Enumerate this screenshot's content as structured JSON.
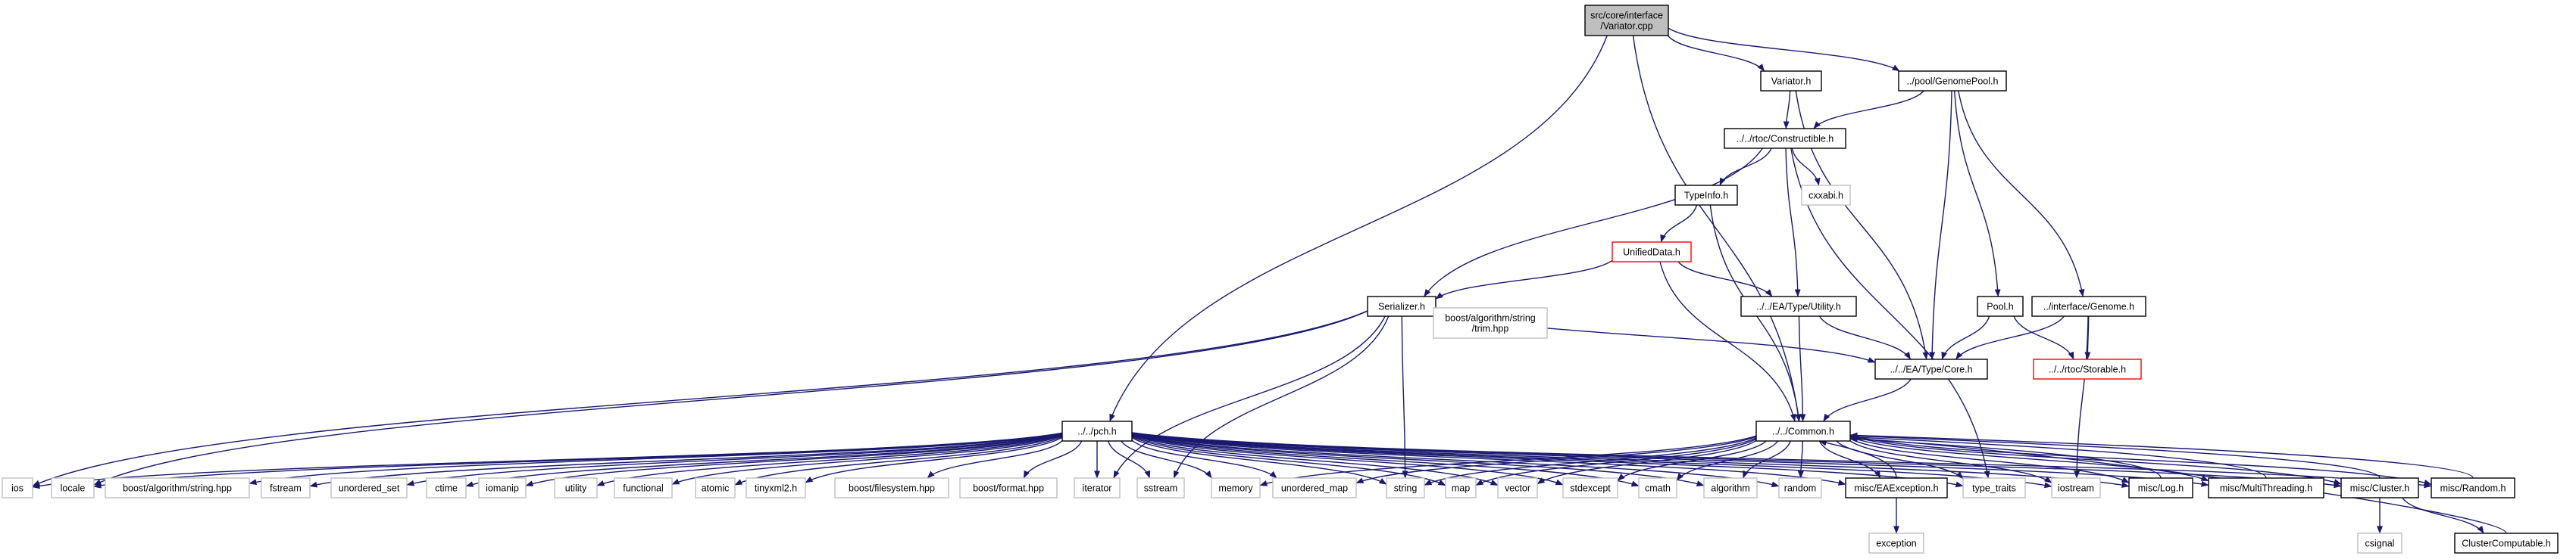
{
  "graph": {
    "nodes": [
      {
        "id": "variator_cpp",
        "lines": [
          "src/core/interface",
          "/Variator.cpp"
        ],
        "style": "root"
      },
      {
        "id": "variator_h",
        "lines": [
          "Variator.h"
        ],
        "style": "normal"
      },
      {
        "id": "genomepool_h",
        "lines": [
          "../pool/GenomePool.h"
        ],
        "style": "normal"
      },
      {
        "id": "constructible_h",
        "lines": [
          "../../rtoc/Constructible.h"
        ],
        "style": "normal"
      },
      {
        "id": "typeinfo_h",
        "lines": [
          "TypeInfo.h"
        ],
        "style": "normal"
      },
      {
        "id": "cxxabi_h",
        "lines": [
          "cxxabi.h"
        ],
        "style": "gray"
      },
      {
        "id": "unifieddata_h",
        "lines": [
          "UnifiedData.h"
        ],
        "style": "red"
      },
      {
        "id": "serializer_h",
        "lines": [
          "Serializer.h"
        ],
        "style": "normal"
      },
      {
        "id": "boost_trim",
        "lines": [
          "boost/algorithm/string",
          "/trim.hpp"
        ],
        "style": "gray"
      },
      {
        "id": "typeutility_h",
        "lines": [
          "../../EA/Type/Utility.h"
        ],
        "style": "normal"
      },
      {
        "id": "typecore_h",
        "lines": [
          "../../EA/Type/Core.h"
        ],
        "style": "normal"
      },
      {
        "id": "pool_h",
        "lines": [
          "Pool.h"
        ],
        "style": "normal"
      },
      {
        "id": "genome_h",
        "lines": [
          "../interface/Genome.h"
        ],
        "style": "normal"
      },
      {
        "id": "storable_h",
        "lines": [
          "../../rtoc/Storable.h"
        ],
        "style": "red"
      },
      {
        "id": "pch_h",
        "lines": [
          "../../pch.h"
        ],
        "style": "normal"
      },
      {
        "id": "common_h",
        "lines": [
          "../../Common.h"
        ],
        "style": "normal"
      },
      {
        "id": "ios",
        "lines": [
          "ios"
        ],
        "style": "gray"
      },
      {
        "id": "locale",
        "lines": [
          "locale"
        ],
        "style": "gray"
      },
      {
        "id": "boost_string",
        "lines": [
          "boost/algorithm/string.hpp"
        ],
        "style": "gray"
      },
      {
        "id": "fstream",
        "lines": [
          "fstream"
        ],
        "style": "gray"
      },
      {
        "id": "unordered_set",
        "lines": [
          "unordered_set"
        ],
        "style": "gray"
      },
      {
        "id": "ctime",
        "lines": [
          "ctime"
        ],
        "style": "gray"
      },
      {
        "id": "iomanip",
        "lines": [
          "iomanip"
        ],
        "style": "gray"
      },
      {
        "id": "utility",
        "lines": [
          "utility"
        ],
        "style": "gray"
      },
      {
        "id": "functional",
        "lines": [
          "functional"
        ],
        "style": "gray"
      },
      {
        "id": "atomic",
        "lines": [
          "atomic"
        ],
        "style": "gray"
      },
      {
        "id": "tinyxml2",
        "lines": [
          "tinyxml2.h"
        ],
        "style": "gray"
      },
      {
        "id": "boost_filesystem",
        "lines": [
          "boost/filesystem.hpp"
        ],
        "style": "gray"
      },
      {
        "id": "boost_format",
        "lines": [
          "boost/format.hpp"
        ],
        "style": "gray"
      },
      {
        "id": "iterator",
        "lines": [
          "iterator"
        ],
        "style": "gray"
      },
      {
        "id": "sstream",
        "lines": [
          "sstream"
        ],
        "style": "gray"
      },
      {
        "id": "memory",
        "lines": [
          "memory"
        ],
        "style": "gray"
      },
      {
        "id": "unordered_map",
        "lines": [
          "unordered_map"
        ],
        "style": "gray"
      },
      {
        "id": "string",
        "lines": [
          "string"
        ],
        "style": "gray"
      },
      {
        "id": "map",
        "lines": [
          "map"
        ],
        "style": "gray"
      },
      {
        "id": "vector",
        "lines": [
          "vector"
        ],
        "style": "gray"
      },
      {
        "id": "stdexcept",
        "lines": [
          "stdexcept"
        ],
        "style": "gray"
      },
      {
        "id": "cmath",
        "lines": [
          "cmath"
        ],
        "style": "gray"
      },
      {
        "id": "algorithm",
        "lines": [
          "algorithm"
        ],
        "style": "gray"
      },
      {
        "id": "random",
        "lines": [
          "random"
        ],
        "style": "gray"
      },
      {
        "id": "eaexception_h",
        "lines": [
          "misc/EAException.h"
        ],
        "style": "normal"
      },
      {
        "id": "type_traits",
        "lines": [
          "type_traits"
        ],
        "style": "gray"
      },
      {
        "id": "iostream",
        "lines": [
          "iostream"
        ],
        "style": "gray"
      },
      {
        "id": "log_h",
        "lines": [
          "misc/Log.h"
        ],
        "style": "normal"
      },
      {
        "id": "multithreading_h",
        "lines": [
          "misc/MultiThreading.h"
        ],
        "style": "normal"
      },
      {
        "id": "cluster_h",
        "lines": [
          "misc/Cluster.h"
        ],
        "style": "normal"
      },
      {
        "id": "random_h",
        "lines": [
          "misc/Random.h"
        ],
        "style": "normal"
      },
      {
        "id": "exception",
        "lines": [
          "exception"
        ],
        "style": "gray"
      },
      {
        "id": "csignal",
        "lines": [
          "csignal"
        ],
        "style": "gray"
      },
      {
        "id": "clustercomputable_h",
        "lines": [
          "ClusterComputable.h"
        ],
        "style": "normal"
      }
    ],
    "edges": [
      [
        "variator_cpp",
        "variator_h"
      ],
      [
        "variator_cpp",
        "genomepool_h"
      ],
      [
        "variator_cpp",
        "pch_h"
      ],
      [
        "variator_cpp",
        "common_h"
      ],
      [
        "variator_h",
        "constructible_h"
      ],
      [
        "variator_h",
        "typecore_h"
      ],
      [
        "genomepool_h",
        "constructible_h"
      ],
      [
        "genomepool_h",
        "pool_h"
      ],
      [
        "genomepool_h",
        "genome_h"
      ],
      [
        "genomepool_h",
        "typecore_h"
      ],
      [
        "constructible_h",
        "typeinfo_h"
      ],
      [
        "constructible_h",
        "cxxabi_h"
      ],
      [
        "constructible_h",
        "serializer_h"
      ],
      [
        "constructible_h",
        "typeutility_h"
      ],
      [
        "constructible_h",
        "type_traits"
      ],
      [
        "typeinfo_h",
        "unifieddata_h"
      ],
      [
        "typeinfo_h",
        "common_h"
      ],
      [
        "unifieddata_h",
        "serializer_h"
      ],
      [
        "unifieddata_h",
        "typeutility_h"
      ],
      [
        "unifieddata_h",
        "common_h"
      ],
      [
        "serializer_h",
        "boost_trim"
      ],
      [
        "serializer_h",
        "typecore_h"
      ],
      [
        "serializer_h",
        "ios"
      ],
      [
        "serializer_h",
        "locale"
      ],
      [
        "serializer_h",
        "iterator"
      ],
      [
        "serializer_h",
        "sstream"
      ],
      [
        "serializer_h",
        "string"
      ],
      [
        "typeutility_h",
        "typecore_h"
      ],
      [
        "typeutility_h",
        "common_h"
      ],
      [
        "typecore_h",
        "common_h"
      ],
      [
        "pool_h",
        "typecore_h"
      ],
      [
        "pool_h",
        "storable_h"
      ],
      [
        "genome_h",
        "typecore_h"
      ],
      [
        "genome_h",
        "storable_h"
      ],
      [
        "genome_h",
        "iostream"
      ],
      [
        "pch_h",
        "ios"
      ],
      [
        "pch_h",
        "locale"
      ],
      [
        "pch_h",
        "boost_string"
      ],
      [
        "pch_h",
        "fstream"
      ],
      [
        "pch_h",
        "unordered_set"
      ],
      [
        "pch_h",
        "ctime"
      ],
      [
        "pch_h",
        "iomanip"
      ],
      [
        "pch_h",
        "utility"
      ],
      [
        "pch_h",
        "functional"
      ],
      [
        "pch_h",
        "atomic"
      ],
      [
        "pch_h",
        "tinyxml2"
      ],
      [
        "pch_h",
        "boost_filesystem"
      ],
      [
        "pch_h",
        "boost_format"
      ],
      [
        "pch_h",
        "iterator"
      ],
      [
        "pch_h",
        "sstream"
      ],
      [
        "pch_h",
        "memory"
      ],
      [
        "pch_h",
        "unordered_map"
      ],
      [
        "pch_h",
        "string"
      ],
      [
        "pch_h",
        "map"
      ],
      [
        "pch_h",
        "vector"
      ],
      [
        "pch_h",
        "stdexcept"
      ],
      [
        "pch_h",
        "cmath"
      ],
      [
        "pch_h",
        "algorithm"
      ],
      [
        "pch_h",
        "random"
      ],
      [
        "pch_h",
        "type_traits"
      ],
      [
        "pch_h",
        "iostream"
      ],
      [
        "pch_h",
        "eaexception_h"
      ],
      [
        "pch_h",
        "log_h"
      ],
      [
        "pch_h",
        "multithreading_h"
      ],
      [
        "pch_h",
        "cluster_h"
      ],
      [
        "pch_h",
        "random_h"
      ],
      [
        "common_h",
        "memory"
      ],
      [
        "common_h",
        "unordered_map"
      ],
      [
        "common_h",
        "string"
      ],
      [
        "common_h",
        "map"
      ],
      [
        "common_h",
        "vector"
      ],
      [
        "common_h",
        "stdexcept"
      ],
      [
        "common_h",
        "cmath"
      ],
      [
        "common_h",
        "algorithm"
      ],
      [
        "common_h",
        "random"
      ],
      [
        "common_h",
        "eaexception_h"
      ],
      [
        "common_h",
        "type_traits"
      ],
      [
        "common_h",
        "iostream"
      ],
      [
        "common_h",
        "log_h"
      ],
      [
        "common_h",
        "multithreading_h"
      ],
      [
        "common_h",
        "cluster_h"
      ],
      [
        "common_h",
        "random_h"
      ],
      [
        "eaexception_h",
        "common_h"
      ],
      [
        "eaexception_h",
        "exception"
      ],
      [
        "log_h",
        "common_h"
      ],
      [
        "multithreading_h",
        "common_h"
      ],
      [
        "cluster_h",
        "common_h"
      ],
      [
        "cluster_h",
        "csignal"
      ],
      [
        "cluster_h",
        "clustercomputable_h"
      ],
      [
        "random_h",
        "common_h"
      ],
      [
        "clustercomputable_h",
        "common_h"
      ]
    ],
    "colors": {
      "edge": "#191970",
      "root_fill": "#bfbfbf",
      "node_border": "#000000",
      "gray_border": "#bfbfbf",
      "red_border": "#ff0000",
      "background": "#ffffff"
    }
  }
}
